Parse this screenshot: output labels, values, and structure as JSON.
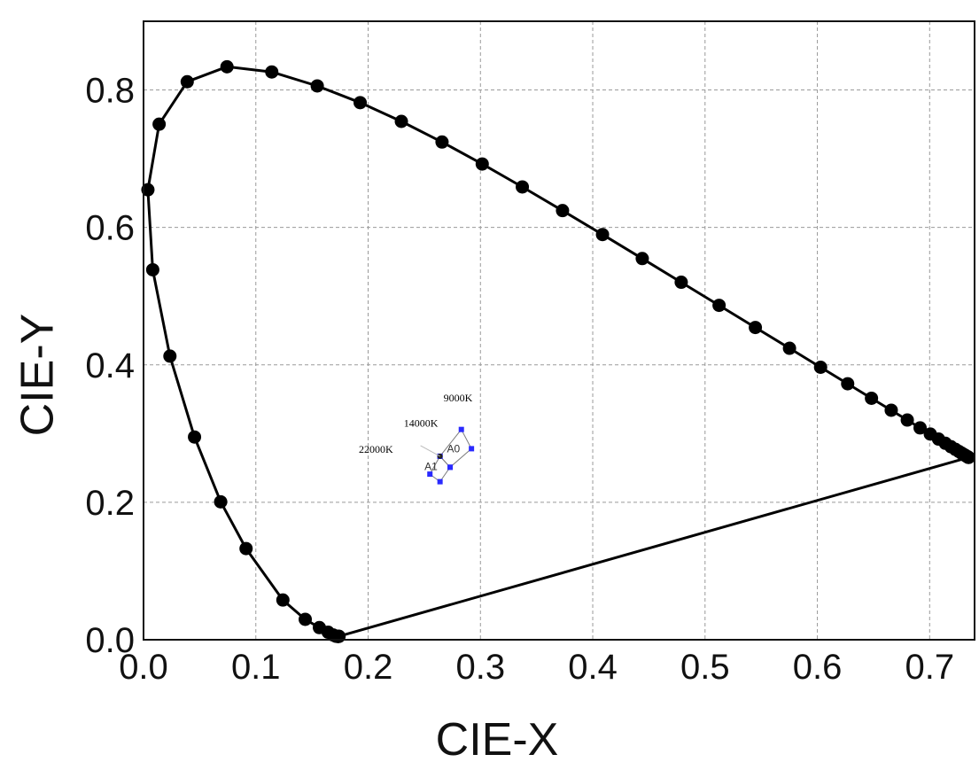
{
  "chart_data": {
    "type": "scatter",
    "title": "",
    "xlabel": "CIE-X",
    "ylabel": "CIE-Y",
    "xlim": [
      0.0,
      0.74
    ],
    "ylim": [
      0.0,
      0.9
    ],
    "x_ticks": [
      "0.0",
      "0.1",
      "0.2",
      "0.3",
      "0.4",
      "0.5",
      "0.6",
      "0.7"
    ],
    "y_ticks": [
      "0.0",
      "0.2",
      "0.4",
      "0.6",
      "0.8"
    ],
    "grid": true,
    "series": [
      {
        "style": "line-with-markers",
        "color": "#000000",
        "points": [
          [
            0.1741,
            0.005
          ],
          [
            0.1738,
            0.0049
          ],
          [
            0.1736,
            0.0049
          ],
          [
            0.1733,
            0.0048
          ],
          [
            0.1726,
            0.0048
          ],
          [
            0.1714,
            0.0051
          ],
          [
            0.1689,
            0.0069
          ],
          [
            0.1644,
            0.0109
          ],
          [
            0.1566,
            0.0177
          ],
          [
            0.144,
            0.0297
          ],
          [
            0.1241,
            0.0578
          ],
          [
            0.0913,
            0.1327
          ],
          [
            0.0687,
            0.2007
          ],
          [
            0.0454,
            0.295
          ],
          [
            0.0235,
            0.4127
          ],
          [
            0.0082,
            0.5384
          ],
          [
            0.0039,
            0.6548
          ],
          [
            0.0139,
            0.7502
          ],
          [
            0.0389,
            0.812
          ],
          [
            0.0743,
            0.8338
          ],
          [
            0.1142,
            0.8262
          ],
          [
            0.1547,
            0.8059
          ],
          [
            0.1929,
            0.7816
          ],
          [
            0.2296,
            0.7543
          ],
          [
            0.2658,
            0.7243
          ],
          [
            0.3016,
            0.6923
          ],
          [
            0.3373,
            0.6589
          ],
          [
            0.3731,
            0.6245
          ],
          [
            0.4087,
            0.5896
          ],
          [
            0.4441,
            0.5547
          ],
          [
            0.4788,
            0.5202
          ],
          [
            0.5125,
            0.4866
          ],
          [
            0.5448,
            0.4544
          ],
          [
            0.5752,
            0.4242
          ],
          [
            0.6029,
            0.3965
          ],
          [
            0.627,
            0.3725
          ],
          [
            0.6482,
            0.3514
          ],
          [
            0.6658,
            0.334
          ],
          [
            0.6801,
            0.3197
          ],
          [
            0.6915,
            0.3083
          ],
          [
            0.7006,
            0.2993
          ],
          [
            0.7079,
            0.292
          ],
          [
            0.714,
            0.2859
          ],
          [
            0.719,
            0.2809
          ],
          [
            0.723,
            0.277
          ],
          [
            0.726,
            0.274
          ],
          [
            0.7283,
            0.2717
          ],
          [
            0.73,
            0.27
          ],
          [
            0.7311,
            0.2689
          ],
          [
            0.732,
            0.268
          ],
          [
            0.7327,
            0.2673
          ],
          [
            0.7334,
            0.2666
          ],
          [
            0.734,
            0.266
          ],
          [
            0.7344,
            0.2656
          ],
          [
            0.7346,
            0.2654
          ],
          [
            0.7347,
            0.2653
          ]
        ],
        "closed": true
      }
    ],
    "annotations": [
      {
        "text": "9000K",
        "x": 0.28,
        "y": 0.347
      },
      {
        "text": "14000K",
        "x": 0.247,
        "y": 0.31
      },
      {
        "text": "22000K",
        "x": 0.207,
        "y": 0.272
      },
      {
        "text": "A0",
        "x": 0.276,
        "y": 0.273
      },
      {
        "text": "A1",
        "x": 0.256,
        "y": 0.247
      }
    ],
    "regions": [
      {
        "name": "A0",
        "vertices": [
          [
            0.283,
            0.306
          ],
          [
            0.292,
            0.278
          ],
          [
            0.273,
            0.251
          ],
          [
            0.264,
            0.267
          ]
        ]
      },
      {
        "name": "A1",
        "vertices": [
          [
            0.264,
            0.267
          ],
          [
            0.273,
            0.251
          ],
          [
            0.264,
            0.23
          ],
          [
            0.255,
            0.241
          ]
        ]
      }
    ],
    "region_colors": {
      "outline": "#7a7a7a",
      "vertex": "#2a2aff",
      "center": "#222222"
    }
  }
}
